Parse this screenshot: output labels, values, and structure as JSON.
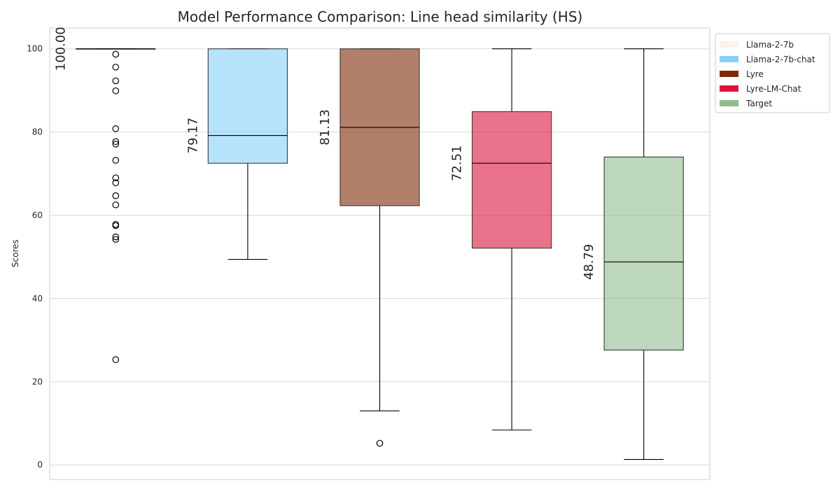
{
  "chart_data": {
    "type": "box",
    "title": "Model Performance Comparison: Line head similarity (HS)",
    "ylabel": "Scores",
    "ylim": [
      -3.5,
      105
    ],
    "yticks": [
      0,
      20,
      40,
      60,
      80,
      100
    ],
    "grid": true,
    "legend_position": "outside-top-right",
    "series": [
      {
        "name": "Llama-2-7b",
        "color": "#fdf2e4",
        "whisker_low": 100,
        "q1": 100,
        "median": 100,
        "q3": 100,
        "whisker_high": 100,
        "median_label": "100.00",
        "outliers": [
          98.7,
          95.6,
          92.3,
          89.9,
          80.8,
          77.7,
          77.1,
          73.2,
          69.0,
          67.8,
          64.7,
          62.5,
          57.8,
          57.5,
          54.8,
          54.2,
          25.3
        ]
      },
      {
        "name": "Llama-2-7b-chat",
        "color": "#87cefa",
        "whisker_low": 49.4,
        "q1": 72.5,
        "median": 79.17,
        "q3": 100,
        "whisker_high": 100,
        "median_label": "79.17",
        "outliers": []
      },
      {
        "name": "Lyre",
        "color": "#7f2a06",
        "whisker_low": 13.0,
        "q1": 62.3,
        "median": 81.13,
        "q3": 100,
        "whisker_high": 100,
        "median_label": "81.13",
        "outliers": [
          5.2
        ]
      },
      {
        "name": "Lyre-LM-Chat",
        "color": "#dc143c",
        "whisker_low": 8.4,
        "q1": 52.1,
        "median": 72.51,
        "q3": 84.9,
        "whisker_high": 100,
        "median_label": "72.51",
        "outliers": []
      },
      {
        "name": "Target",
        "color": "#8fbc8f",
        "whisker_low": 1.3,
        "q1": 27.6,
        "median": 48.79,
        "q3": 74.0,
        "whisker_high": 100,
        "median_label": "48.79",
        "outliers": []
      }
    ]
  }
}
